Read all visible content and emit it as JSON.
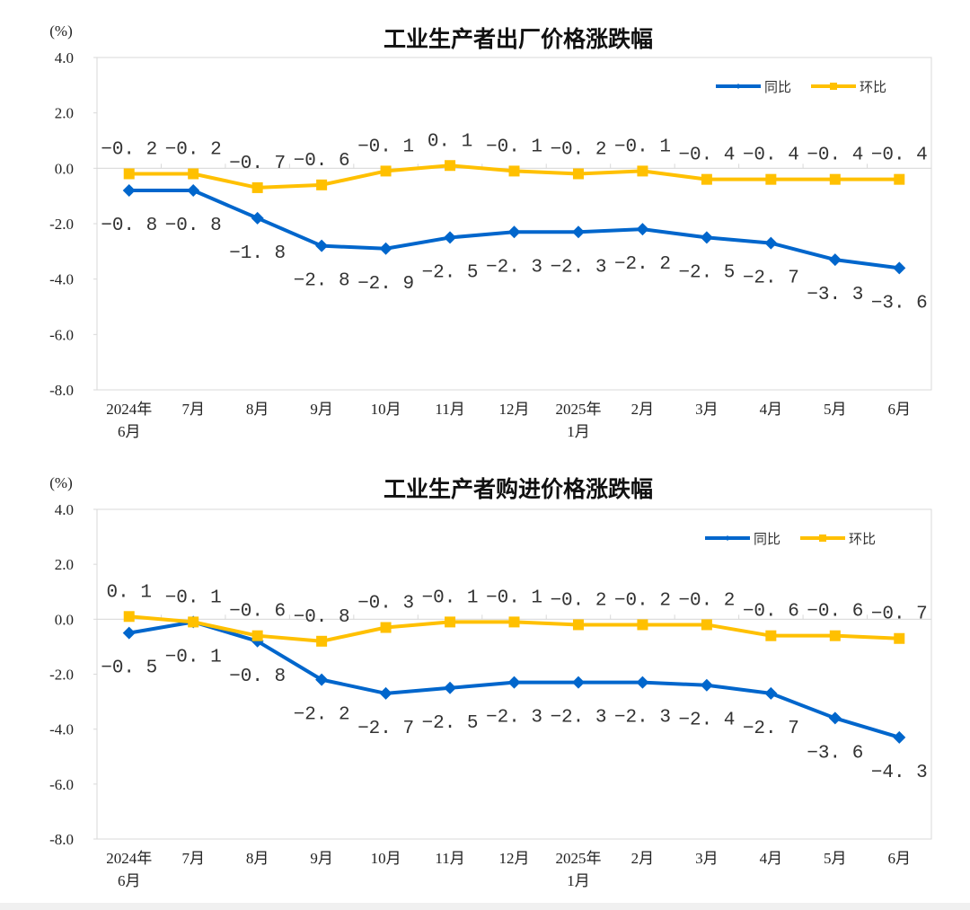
{
  "colors": {
    "yoy": "#0066CC",
    "mom": "#FFC000",
    "grid": "#D9D9D9"
  },
  "chart_data": [
    {
      "type": "line",
      "title": "工业生产者出厂价格涨跌幅",
      "ylabel": "(%)",
      "ylim": [
        -8.0,
        4.0
      ],
      "yticks": [
        "4.0",
        "2.0",
        "0.0",
        "-2.0",
        "-4.0",
        "-6.0",
        "-8.0"
      ],
      "categories": [
        [
          "2024年",
          "6月"
        ],
        [
          "7月"
        ],
        [
          "8月"
        ],
        [
          "9月"
        ],
        [
          "10月"
        ],
        [
          "11月"
        ],
        [
          "12月"
        ],
        [
          "2025年",
          "1月"
        ],
        [
          "2月"
        ],
        [
          "3月"
        ],
        [
          "4月"
        ],
        [
          "5月"
        ],
        [
          "6月"
        ]
      ],
      "legend_position": "top-right",
      "series": [
        {
          "name": "同比",
          "key": "yoy",
          "values": [
            -0.8,
            -0.8,
            -1.8,
            -2.8,
            -2.9,
            -2.5,
            -2.3,
            -2.3,
            -2.2,
            -2.5,
            -2.7,
            -3.3,
            -3.6
          ]
        },
        {
          "name": "环比",
          "key": "mom",
          "values": [
            -0.2,
            -0.2,
            -0.7,
            -0.6,
            -0.1,
            0.1,
            -0.1,
            -0.2,
            -0.1,
            -0.4,
            -0.4,
            -0.4,
            -0.4
          ]
        }
      ]
    },
    {
      "type": "line",
      "title": "工业生产者购进价格涨跌幅",
      "ylabel": "(%)",
      "ylim": [
        -8.0,
        4.0
      ],
      "yticks": [
        "4.0",
        "2.0",
        "0.0",
        "-2.0",
        "-4.0",
        "-6.0",
        "-8.0"
      ],
      "categories": [
        [
          "2024年",
          "6月"
        ],
        [
          "7月"
        ],
        [
          "8月"
        ],
        [
          "9月"
        ],
        [
          "10月"
        ],
        [
          "11月"
        ],
        [
          "12月"
        ],
        [
          "2025年",
          "1月"
        ],
        [
          "2月"
        ],
        [
          "3月"
        ],
        [
          "4月"
        ],
        [
          "5月"
        ],
        [
          "6月"
        ]
      ],
      "legend_position": "top-right",
      "series": [
        {
          "name": "同比",
          "key": "yoy",
          "values": [
            -0.5,
            -0.1,
            -0.8,
            -2.2,
            -2.7,
            -2.5,
            -2.3,
            -2.3,
            -2.3,
            -2.4,
            -2.7,
            -3.6,
            -4.3
          ]
        },
        {
          "name": "环比",
          "key": "mom",
          "values": [
            0.1,
            -0.1,
            -0.6,
            -0.8,
            -0.3,
            -0.1,
            -0.1,
            -0.2,
            -0.2,
            -0.2,
            -0.6,
            -0.6,
            -0.7
          ]
        }
      ]
    }
  ]
}
